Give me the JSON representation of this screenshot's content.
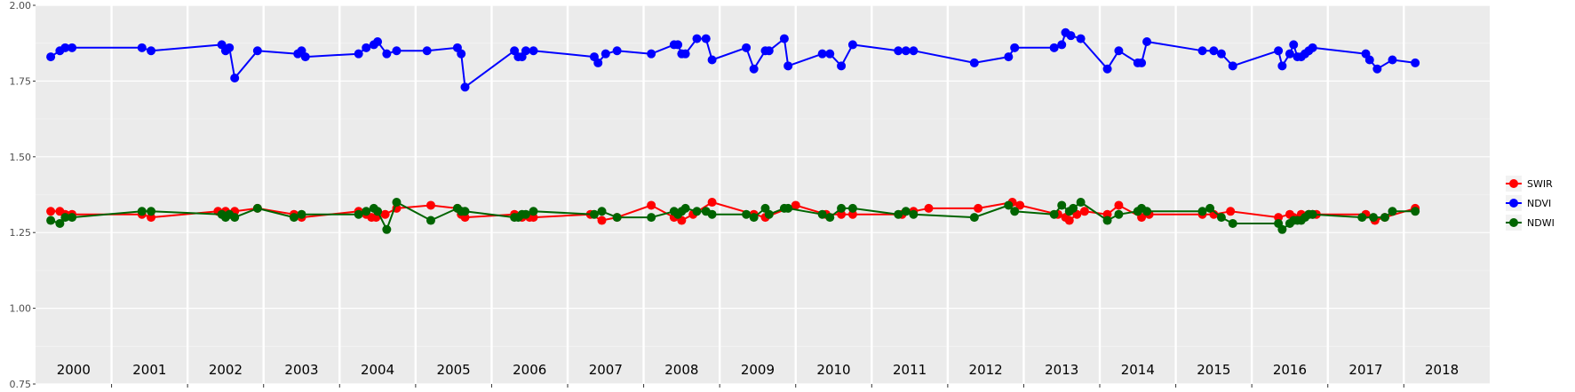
{
  "chart_data": {
    "type": "line",
    "ylim": [
      0.75,
      2.0
    ],
    "yticks": [
      0.75,
      1.0,
      1.25,
      1.5,
      1.75,
      2.0
    ],
    "ytick_labels": [
      "0.75",
      "1.00",
      "1.25",
      "1.50",
      "1.75",
      "2.00"
    ],
    "xlim": [
      2000.0,
      2019.13
    ],
    "year_labels": [
      "2000",
      "2001",
      "2002",
      "2003",
      "2004",
      "2005",
      "2006",
      "2007",
      "2008",
      "2009",
      "2010",
      "2011",
      "2012",
      "2013",
      "2014",
      "2015",
      "2016",
      "2017",
      "2018"
    ],
    "grid": true,
    "legend_position": "right",
    "series": [
      {
        "name": "SWIR",
        "color": "#ff0000",
        "points": [
          [
            2000.2,
            1.32
          ],
          [
            2000.32,
            1.32
          ],
          [
            2000.39,
            1.31
          ],
          [
            2000.48,
            1.31
          ],
          [
            2001.4,
            1.31
          ],
          [
            2001.52,
            1.3
          ],
          [
            2002.4,
            1.32
          ],
          [
            2002.5,
            1.32
          ],
          [
            2002.55,
            1.31
          ],
          [
            2002.62,
            1.32
          ],
          [
            2002.92,
            1.33
          ],
          [
            2003.4,
            1.31
          ],
          [
            2003.5,
            1.3
          ],
          [
            2004.25,
            1.32
          ],
          [
            2004.35,
            1.31
          ],
          [
            2004.42,
            1.3
          ],
          [
            2004.48,
            1.3
          ],
          [
            2004.6,
            1.31
          ],
          [
            2004.75,
            1.33
          ],
          [
            2005.2,
            1.34
          ],
          [
            2005.55,
            1.33
          ],
          [
            2005.6,
            1.31
          ],
          [
            2005.65,
            1.3
          ],
          [
            2006.3,
            1.31
          ],
          [
            2006.4,
            1.3
          ],
          [
            2006.5,
            1.3
          ],
          [
            2006.55,
            1.3
          ],
          [
            2007.3,
            1.31
          ],
          [
            2007.45,
            1.29
          ],
          [
            2007.65,
            1.3
          ],
          [
            2008.1,
            1.34
          ],
          [
            2008.4,
            1.3
          ],
          [
            2008.5,
            1.29
          ],
          [
            2008.65,
            1.31
          ],
          [
            2008.9,
            1.35
          ],
          [
            2009.45,
            1.31
          ],
          [
            2009.6,
            1.3
          ],
          [
            2010.0,
            1.34
          ],
          [
            2010.4,
            1.31
          ],
          [
            2010.6,
            1.31
          ],
          [
            2010.75,
            1.31
          ],
          [
            2011.4,
            1.31
          ],
          [
            2011.55,
            1.32
          ],
          [
            2011.75,
            1.33
          ],
          [
            2012.4,
            1.33
          ],
          [
            2012.85,
            1.35
          ],
          [
            2012.95,
            1.34
          ],
          [
            2013.45,
            1.31
          ],
          [
            2013.55,
            1.3
          ],
          [
            2013.6,
            1.29
          ],
          [
            2013.7,
            1.31
          ],
          [
            2013.8,
            1.32
          ],
          [
            2014.1,
            1.31
          ],
          [
            2014.25,
            1.34
          ],
          [
            2014.55,
            1.3
          ],
          [
            2014.65,
            1.31
          ],
          [
            2015.35,
            1.31
          ],
          [
            2015.5,
            1.31
          ],
          [
            2015.72,
            1.32
          ],
          [
            2016.35,
            1.3
          ],
          [
            2016.5,
            1.31
          ],
          [
            2016.55,
            1.3
          ],
          [
            2016.65,
            1.31
          ],
          [
            2016.75,
            1.31
          ],
          [
            2016.8,
            1.31
          ],
          [
            2016.85,
            1.31
          ],
          [
            2017.5,
            1.31
          ],
          [
            2017.62,
            1.29
          ],
          [
            2017.75,
            1.3
          ],
          [
            2018.15,
            1.33
          ]
        ]
      },
      {
        "name": "NDVI",
        "color": "#0000ff",
        "points": [
          [
            2000.2,
            1.83
          ],
          [
            2000.32,
            1.85
          ],
          [
            2000.39,
            1.86
          ],
          [
            2000.48,
            1.86
          ],
          [
            2001.4,
            1.86
          ],
          [
            2001.52,
            1.85
          ],
          [
            2002.45,
            1.87
          ],
          [
            2002.5,
            1.85
          ],
          [
            2002.55,
            1.86
          ],
          [
            2002.62,
            1.76
          ],
          [
            2002.92,
            1.85
          ],
          [
            2003.45,
            1.84
          ],
          [
            2003.5,
            1.85
          ],
          [
            2003.55,
            1.83
          ],
          [
            2004.25,
            1.84
          ],
          [
            2004.35,
            1.86
          ],
          [
            2004.45,
            1.87
          ],
          [
            2004.5,
            1.88
          ],
          [
            2004.62,
            1.84
          ],
          [
            2004.75,
            1.85
          ],
          [
            2005.15,
            1.85
          ],
          [
            2005.55,
            1.86
          ],
          [
            2005.6,
            1.84
          ],
          [
            2005.65,
            1.73
          ],
          [
            2006.3,
            1.85
          ],
          [
            2006.35,
            1.83
          ],
          [
            2006.4,
            1.83
          ],
          [
            2006.45,
            1.85
          ],
          [
            2006.55,
            1.85
          ],
          [
            2007.35,
            1.83
          ],
          [
            2007.4,
            1.81
          ],
          [
            2007.5,
            1.84
          ],
          [
            2007.65,
            1.85
          ],
          [
            2008.1,
            1.84
          ],
          [
            2008.4,
            1.87
          ],
          [
            2008.45,
            1.87
          ],
          [
            2008.5,
            1.84
          ],
          [
            2008.55,
            1.84
          ],
          [
            2008.7,
            1.89
          ],
          [
            2008.82,
            1.89
          ],
          [
            2008.9,
            1.82
          ],
          [
            2009.35,
            1.86
          ],
          [
            2009.45,
            1.79
          ],
          [
            2009.6,
            1.85
          ],
          [
            2009.65,
            1.85
          ],
          [
            2009.85,
            1.89
          ],
          [
            2009.9,
            1.8
          ],
          [
            2010.35,
            1.84
          ],
          [
            2010.45,
            1.84
          ],
          [
            2010.6,
            1.8
          ],
          [
            2010.75,
            1.87
          ],
          [
            2011.35,
            1.85
          ],
          [
            2011.45,
            1.85
          ],
          [
            2011.55,
            1.85
          ],
          [
            2012.35,
            1.81
          ],
          [
            2012.8,
            1.83
          ],
          [
            2012.88,
            1.86
          ],
          [
            2013.4,
            1.86
          ],
          [
            2013.5,
            1.87
          ],
          [
            2013.55,
            1.91
          ],
          [
            2013.62,
            1.9
          ],
          [
            2013.75,
            1.89
          ],
          [
            2014.1,
            1.79
          ],
          [
            2014.25,
            1.85
          ],
          [
            2014.5,
            1.81
          ],
          [
            2014.55,
            1.81
          ],
          [
            2014.62,
            1.88
          ],
          [
            2015.35,
            1.85
          ],
          [
            2015.5,
            1.85
          ],
          [
            2015.6,
            1.84
          ],
          [
            2015.75,
            1.8
          ],
          [
            2016.35,
            1.85
          ],
          [
            2016.4,
            1.8
          ],
          [
            2016.5,
            1.84
          ],
          [
            2016.55,
            1.87
          ],
          [
            2016.6,
            1.83
          ],
          [
            2016.65,
            1.83
          ],
          [
            2016.7,
            1.84
          ],
          [
            2016.75,
            1.85
          ],
          [
            2016.8,
            1.86
          ],
          [
            2017.5,
            1.84
          ],
          [
            2017.55,
            1.82
          ],
          [
            2017.65,
            1.79
          ],
          [
            2017.85,
            1.82
          ],
          [
            2018.15,
            1.81
          ]
        ]
      },
      {
        "name": "NDWI",
        "color": "#006400",
        "points": [
          [
            2000.2,
            1.29
          ],
          [
            2000.32,
            1.28
          ],
          [
            2000.39,
            1.3
          ],
          [
            2000.48,
            1.3
          ],
          [
            2001.4,
            1.32
          ],
          [
            2001.52,
            1.32
          ],
          [
            2002.45,
            1.31
          ],
          [
            2002.5,
            1.3
          ],
          [
            2002.55,
            1.31
          ],
          [
            2002.62,
            1.3
          ],
          [
            2002.92,
            1.33
          ],
          [
            2003.4,
            1.3
          ],
          [
            2003.5,
            1.31
          ],
          [
            2004.25,
            1.31
          ],
          [
            2004.35,
            1.32
          ],
          [
            2004.45,
            1.33
          ],
          [
            2004.5,
            1.32
          ],
          [
            2004.62,
            1.26
          ],
          [
            2004.75,
            1.35
          ],
          [
            2005.2,
            1.29
          ],
          [
            2005.55,
            1.33
          ],
          [
            2005.6,
            1.32
          ],
          [
            2005.65,
            1.32
          ],
          [
            2006.3,
            1.3
          ],
          [
            2006.35,
            1.3
          ],
          [
            2006.4,
            1.31
          ],
          [
            2006.45,
            1.31
          ],
          [
            2006.55,
            1.32
          ],
          [
            2007.35,
            1.31
          ],
          [
            2007.45,
            1.32
          ],
          [
            2007.65,
            1.3
          ],
          [
            2008.1,
            1.3
          ],
          [
            2008.4,
            1.32
          ],
          [
            2008.45,
            1.31
          ],
          [
            2008.5,
            1.32
          ],
          [
            2008.55,
            1.33
          ],
          [
            2008.7,
            1.32
          ],
          [
            2008.82,
            1.32
          ],
          [
            2008.9,
            1.31
          ],
          [
            2009.35,
            1.31
          ],
          [
            2009.45,
            1.3
          ],
          [
            2009.6,
            1.33
          ],
          [
            2009.65,
            1.31
          ],
          [
            2009.85,
            1.33
          ],
          [
            2009.9,
            1.33
          ],
          [
            2010.35,
            1.31
          ],
          [
            2010.45,
            1.3
          ],
          [
            2010.6,
            1.33
          ],
          [
            2010.75,
            1.33
          ],
          [
            2011.35,
            1.31
          ],
          [
            2011.45,
            1.32
          ],
          [
            2011.55,
            1.31
          ],
          [
            2012.35,
            1.3
          ],
          [
            2012.8,
            1.34
          ],
          [
            2012.88,
            1.32
          ],
          [
            2013.4,
            1.31
          ],
          [
            2013.5,
            1.34
          ],
          [
            2013.6,
            1.32
          ],
          [
            2013.65,
            1.33
          ],
          [
            2013.75,
            1.35
          ],
          [
            2014.1,
            1.29
          ],
          [
            2014.25,
            1.31
          ],
          [
            2014.5,
            1.32
          ],
          [
            2014.55,
            1.33
          ],
          [
            2014.62,
            1.32
          ],
          [
            2015.35,
            1.32
          ],
          [
            2015.45,
            1.33
          ],
          [
            2015.6,
            1.3
          ],
          [
            2015.75,
            1.28
          ],
          [
            2016.35,
            1.28
          ],
          [
            2016.4,
            1.26
          ],
          [
            2016.5,
            1.28
          ],
          [
            2016.55,
            1.29
          ],
          [
            2016.6,
            1.29
          ],
          [
            2016.65,
            1.29
          ],
          [
            2016.7,
            1.3
          ],
          [
            2016.75,
            1.31
          ],
          [
            2016.8,
            1.31
          ],
          [
            2017.45,
            1.3
          ],
          [
            2017.6,
            1.3
          ],
          [
            2017.75,
            1.3
          ],
          [
            2017.85,
            1.32
          ],
          [
            2018.15,
            1.32
          ]
        ]
      }
    ]
  }
}
